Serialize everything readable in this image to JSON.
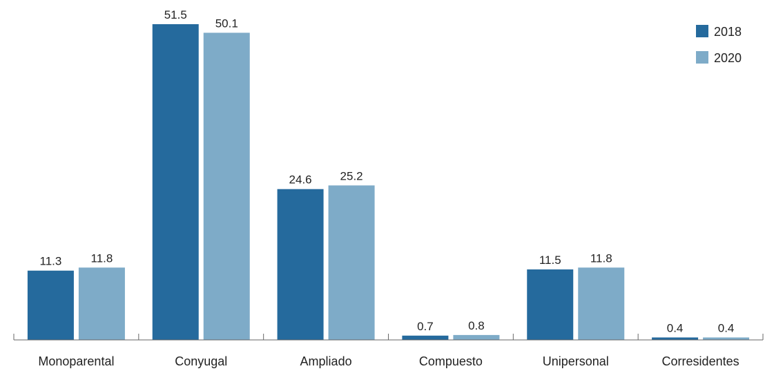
{
  "chart_data": {
    "type": "bar",
    "categories": [
      "Monoparental",
      "Conyugal",
      "Ampliado",
      "Compuesto",
      "Unipersonal",
      "Corresidentes"
    ],
    "series": [
      {
        "name": "2018",
        "values": [
          11.3,
          51.5,
          24.6,
          0.7,
          11.5,
          0.4
        ],
        "color": "#256a9d"
      },
      {
        "name": "2020",
        "values": [
          11.8,
          50.1,
          25.2,
          0.8,
          11.8,
          0.4
        ],
        "color": "#7eabc8"
      }
    ],
    "ylim": [
      0,
      51.5
    ],
    "grid": false,
    "legend": "top-right",
    "axis_color": "#666666",
    "text_color": "#222222"
  }
}
